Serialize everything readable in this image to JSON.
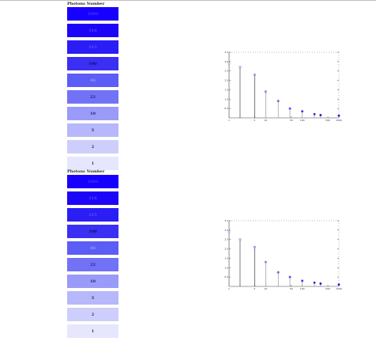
{
  "legends": [
    {
      "title": "Photons Number",
      "items": [
        {
          "label": "1000",
          "color": "#1800ff",
          "text_color": "#3a3aff"
        },
        {
          "label": "316",
          "color": "#1d06f7",
          "text_color": "#4a4aff"
        },
        {
          "label": "215",
          "color": "#2a1df5",
          "text_color": "#5555ff"
        },
        {
          "label": "100",
          "color": "#3a2ff3",
          "text_color": "#11115a"
        },
        {
          "label": "46",
          "color": "#5c5cf6",
          "text_color": "#9999ff"
        },
        {
          "label": "22",
          "color": "#7272f7",
          "text_color": "#22227a"
        },
        {
          "label": "10",
          "color": "#9a9af9",
          "text_color": "#22226a"
        },
        {
          "label": "5",
          "color": "#b7b7fb",
          "text_color": "#222255"
        },
        {
          "label": "2",
          "color": "#cecefc",
          "text_color": "#333355"
        },
        {
          "label": "1",
          "color": "#e6e6fe",
          "text_color": "#333355"
        }
      ]
    },
    {
      "title": "Photons Number",
      "items": [
        {
          "label": "1000",
          "color": "#1800ff",
          "text_color": "#3a3aff"
        },
        {
          "label": "316",
          "color": "#1d06f7",
          "text_color": "#4a4aff"
        },
        {
          "label": "215",
          "color": "#2a1df5",
          "text_color": "#5555ff"
        },
        {
          "label": "100",
          "color": "#3a2ff3",
          "text_color": "#11115a"
        },
        {
          "label": "46",
          "color": "#5c5cf6",
          "text_color": "#9999ff"
        },
        {
          "label": "22",
          "color": "#7272f7",
          "text_color": "#22227a"
        },
        {
          "label": "10",
          "color": "#9a9af9",
          "text_color": "#22226a"
        },
        {
          "label": "5",
          "color": "#b7b7fb",
          "text_color": "#222255"
        },
        {
          "label": "2",
          "color": "#cecefc",
          "text_color": "#333355"
        },
        {
          "label": "1",
          "color": "#e6e6fe",
          "text_color": "#333355"
        }
      ]
    }
  ],
  "chart_data": [
    {
      "type": "scatter",
      "x_scale": "log",
      "xlim": [
        1,
        1000
      ],
      "ylim": [
        0,
        3.5
      ],
      "x_ticks": [
        "1",
        "5",
        "10",
        "50",
        "100",
        "500",
        "1000"
      ],
      "y_ticks": [
        "0.5",
        "1.0",
        "1.5",
        "2.0",
        "2.5",
        "3.0",
        "3.5"
      ],
      "points": [
        {
          "x": 1,
          "y": 2.9,
          "color": "#e6e6fe"
        },
        {
          "x": 2,
          "y": 2.7,
          "color": "#cecefc"
        },
        {
          "x": 5,
          "y": 2.3,
          "color": "#b7b7fb"
        },
        {
          "x": 10,
          "y": 1.4,
          "color": "#9a9af9"
        },
        {
          "x": 22,
          "y": 0.9,
          "color": "#7272f7"
        },
        {
          "x": 46,
          "y": 0.5,
          "color": "#5c5cf6"
        },
        {
          "x": 100,
          "y": 0.35,
          "color": "#3a2ff3"
        },
        {
          "x": 215,
          "y": 0.2,
          "color": "#2a1df5"
        },
        {
          "x": 316,
          "y": 0.15,
          "color": "#1d06f7"
        },
        {
          "x": 1000,
          "y": 0.12,
          "color": "#1800ff"
        }
      ]
    },
    {
      "type": "scatter",
      "x_scale": "log",
      "xlim": [
        1,
        1000
      ],
      "ylim": [
        0,
        3.5
      ],
      "x_ticks": [
        "1",
        "5",
        "10",
        "50",
        "100",
        "500",
        "1000"
      ],
      "y_ticks": [
        "0.5",
        "1.0",
        "1.5",
        "2.0",
        "2.5",
        "3.0",
        "3.5"
      ],
      "points": [
        {
          "x": 1,
          "y": 2.9,
          "color": "#e6e6fe"
        },
        {
          "x": 2,
          "y": 2.5,
          "color": "#cecefc"
        },
        {
          "x": 5,
          "y": 2.1,
          "color": "#b7b7fb"
        },
        {
          "x": 10,
          "y": 1.3,
          "color": "#9a9af9"
        },
        {
          "x": 22,
          "y": 0.75,
          "color": "#7272f7"
        },
        {
          "x": 46,
          "y": 0.5,
          "color": "#5c5cf6"
        },
        {
          "x": 100,
          "y": 0.3,
          "color": "#3a2ff3"
        },
        {
          "x": 215,
          "y": 0.2,
          "color": "#2a1df5"
        },
        {
          "x": 316,
          "y": 0.15,
          "color": "#1d06f7"
        },
        {
          "x": 1000,
          "y": 0.1,
          "color": "#1800ff"
        }
      ]
    }
  ]
}
